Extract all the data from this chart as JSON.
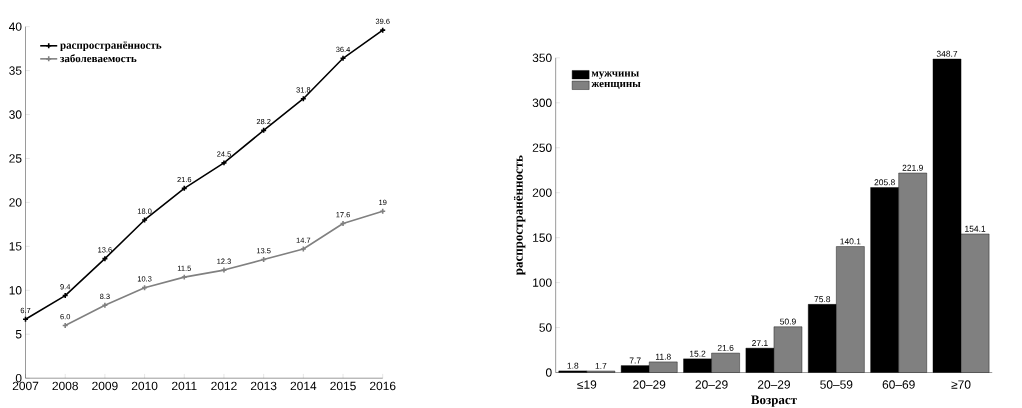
{
  "chart_data": [
    {
      "type": "line",
      "x": [
        2007,
        2008,
        2009,
        2010,
        2011,
        2012,
        2013,
        2014,
        2015,
        2016
      ],
      "xlim": [
        2007,
        2016
      ],
      "xticks": [
        2007,
        2008,
        2009,
        2010,
        2011,
        2012,
        2013,
        2014,
        2015,
        2016
      ],
      "ylim": [
        0,
        40
      ],
      "yticks": [
        0,
        5,
        10,
        15,
        20,
        25,
        30,
        35,
        40
      ],
      "legend": "top left",
      "marker": "cross",
      "line_style": "solid",
      "series": [
        {
          "name": "распространённость",
          "color": "#000000",
          "values": [
            6.7,
            9.4,
            13.6,
            18.0,
            21.6,
            24.5,
            28.2,
            31.8,
            36.4,
            39.6
          ],
          "value_labels": [
            "6.7",
            "9.4",
            "13.6",
            "18.0",
            "21.6",
            "24.5",
            "28.2",
            "31.8",
            "36.4",
            "39.6"
          ]
        },
        {
          "name": "заболеваемость",
          "color": "#808080",
          "values": [
            null,
            6.0,
            8.3,
            10.3,
            11.5,
            12.3,
            13.5,
            14.7,
            17.6,
            19
          ],
          "value_labels": [
            null,
            "6.0",
            "8.3",
            "10.3",
            "11.5",
            "12.3",
            "13.5",
            "14.7",
            "17.6",
            "19"
          ]
        }
      ]
    },
    {
      "type": "bar",
      "categories": [
        "≤19",
        "20–29",
        "20–29",
        "20–29",
        "50–59",
        "60–69",
        "≥70"
      ],
      "ylim": [
        0,
        350
      ],
      "yticks": [
        0,
        50,
        100,
        150,
        200,
        250,
        300,
        350
      ],
      "xlabel": "Возраст",
      "ylabel": "распространённость",
      "legend": "top left",
      "series": [
        {
          "name": "мужчины",
          "color": "#000000",
          "values": [
            1.8,
            7.7,
            15.2,
            27.1,
            75.8,
            205.8,
            348.7
          ],
          "value_labels": [
            "1.8",
            "7.7",
            "15.2",
            "27.1",
            "75.8",
            "205.8",
            "348.7"
          ]
        },
        {
          "name": "женщины",
          "color": "#808080",
          "values": [
            1.7,
            11.8,
            21.6,
            50.9,
            140.1,
            221.9,
            154.1
          ],
          "value_labels": [
            "1.7",
            "11.8",
            "21.6",
            "50.9",
            "140.1",
            "221.9",
            "154.1"
          ]
        }
      ]
    }
  ]
}
